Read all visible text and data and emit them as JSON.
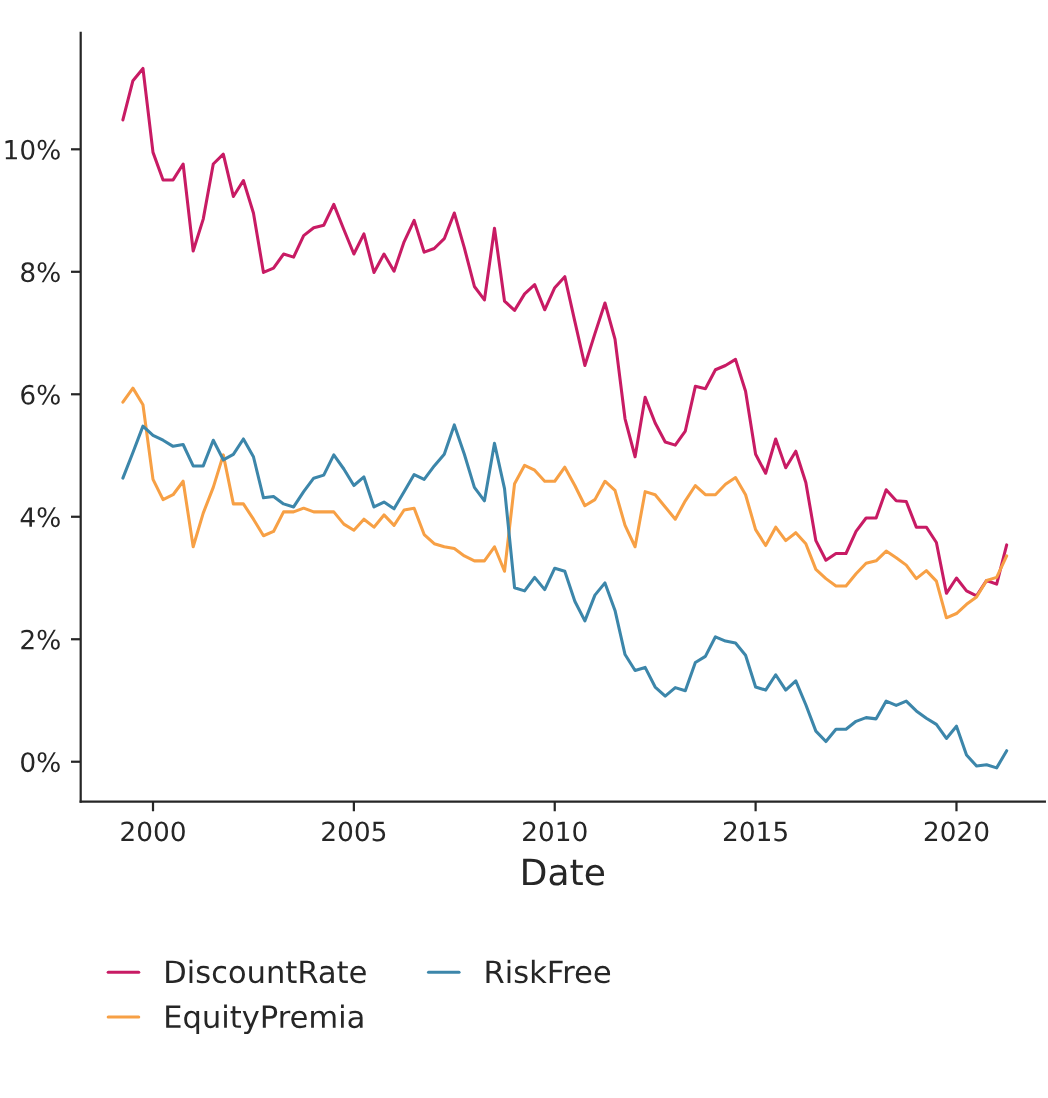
{
  "chart_data": {
    "type": "line",
    "xlabel": "Date",
    "x": [
      1999.25,
      1999.5,
      1999.75,
      2000,
      2000.25,
      2000.5,
      2000.75,
      2001,
      2001.25,
      2001.5,
      2001.75,
      2002,
      2002.25,
      2002.5,
      2002.75,
      2003,
      2003.25,
      2003.5,
      2003.75,
      2004,
      2004.25,
      2004.5,
      2004.75,
      2005,
      2005.25,
      2005.5,
      2005.75,
      2006,
      2006.25,
      2006.5,
      2006.75,
      2007,
      2007.25,
      2007.5,
      2007.75,
      2008,
      2008.25,
      2008.5,
      2008.75,
      2009,
      2009.25,
      2009.5,
      2009.75,
      2010,
      2010.25,
      2010.5,
      2010.75,
      2011,
      2011.25,
      2011.5,
      2011.75,
      2012,
      2012.25,
      2012.5,
      2012.75,
      2013,
      2013.25,
      2013.5,
      2013.75,
      2014,
      2014.25,
      2014.5,
      2014.75,
      2015,
      2015.25,
      2015.5,
      2015.75,
      2016,
      2016.25,
      2016.5,
      2016.75,
      2017,
      2017.25,
      2017.5,
      2017.75,
      2018,
      2018.25,
      2018.5,
      2018.75,
      2019,
      2019.25,
      2019.5,
      2019.75,
      2020,
      2020.25,
      2020.5,
      2020.75,
      2021,
      2021.25
    ],
    "series": [
      {
        "name": "DiscountRate",
        "color": "#c81b64",
        "values": [
          10.48,
          11.12,
          11.32,
          9.95,
          9.5,
          9.5,
          9.76,
          8.34,
          8.86,
          9.76,
          9.92,
          9.23,
          9.49,
          8.96,
          7.99,
          8.06,
          8.29,
          8.24,
          8.59,
          8.72,
          8.76,
          9.1,
          8.69,
          8.29,
          8.62,
          7.99,
          8.29,
          8.01,
          8.49,
          8.84,
          8.32,
          8.38,
          8.54,
          8.96,
          8.39,
          7.76,
          7.54,
          8.71,
          7.52,
          7.37,
          7.64,
          7.79,
          7.38,
          7.74,
          7.92,
          7.19,
          6.47,
          6.99,
          7.49,
          6.9,
          5.6,
          4.98,
          5.95,
          5.53,
          5.22,
          5.17,
          5.4,
          6.13,
          6.09,
          6.4,
          6.47,
          6.57,
          6.05,
          5.02,
          4.71,
          5.27,
          4.8,
          5.07,
          4.56,
          3.61,
          3.29,
          3.4,
          3.4,
          3.76,
          3.98,
          3.98,
          4.44,
          4.26,
          4.25,
          3.83,
          3.83,
          3.58,
          2.75,
          3.0,
          2.79,
          2.71,
          2.96,
          2.9,
          3.54
        ]
      },
      {
        "name": "EquityPremia",
        "color": "#f7a045",
        "values": [
          5.87,
          6.1,
          5.83,
          4.61,
          4.28,
          4.36,
          4.58,
          3.51,
          4.06,
          4.48,
          5.01,
          4.21,
          4.21,
          3.96,
          3.69,
          3.76,
          4.08,
          4.08,
          4.14,
          4.08,
          4.08,
          4.08,
          3.88,
          3.78,
          3.96,
          3.83,
          4.03,
          3.86,
          4.11,
          4.14,
          3.71,
          3.56,
          3.51,
          3.48,
          3.36,
          3.28,
          3.28,
          3.51,
          3.11,
          4.54,
          4.84,
          4.76,
          4.58,
          4.58,
          4.81,
          4.51,
          4.18,
          4.28,
          4.58,
          4.43,
          3.86,
          3.51,
          4.41,
          4.36,
          4.16,
          3.96,
          4.26,
          4.51,
          4.36,
          4.36,
          4.53,
          4.64,
          4.36,
          3.79,
          3.53,
          3.83,
          3.61,
          3.74,
          3.56,
          3.14,
          2.99,
          2.87,
          2.87,
          3.07,
          3.24,
          3.28,
          3.44,
          3.33,
          3.21,
          2.99,
          3.12,
          2.95,
          2.35,
          2.42,
          2.57,
          2.69,
          2.96,
          3.01,
          3.36
        ]
      },
      {
        "name": "RiskFree",
        "color": "#3c86aa",
        "values": [
          4.63,
          5.05,
          5.48,
          5.33,
          5.25,
          5.15,
          5.18,
          4.83,
          4.83,
          5.25,
          4.93,
          5.02,
          5.27,
          4.98,
          4.31,
          4.33,
          4.21,
          4.16,
          4.41,
          4.63,
          4.68,
          5.01,
          4.78,
          4.51,
          4.65,
          4.16,
          4.24,
          4.13,
          4.41,
          4.69,
          4.61,
          4.83,
          5.02,
          5.5,
          5.02,
          4.48,
          4.26,
          5.2,
          4.46,
          2.84,
          2.79,
          3.01,
          2.81,
          3.16,
          3.11,
          2.62,
          2.3,
          2.72,
          2.92,
          2.47,
          1.75,
          1.49,
          1.54,
          1.22,
          1.07,
          1.21,
          1.16,
          1.62,
          1.72,
          2.04,
          1.97,
          1.94,
          1.74,
          1.22,
          1.17,
          1.42,
          1.17,
          1.32,
          0.93,
          0.5,
          0.33,
          0.53,
          0.53,
          0.66,
          0.72,
          0.7,
          0.99,
          0.92,
          0.99,
          0.83,
          0.71,
          0.61,
          0.38,
          0.58,
          0.11,
          -0.07,
          -0.05,
          -0.1,
          0.18
        ]
      }
    ],
    "xlim": [
      1998.2,
      2022.2
    ],
    "xticks": [
      2000,
      2005,
      2010,
      2015,
      2020
    ],
    "ylim": [
      -0.65,
      11.9
    ],
    "yticks": [
      {
        "value": 0,
        "label": "0%"
      },
      {
        "value": 2,
        "label": "2%"
      },
      {
        "value": 4,
        "label": "4%"
      },
      {
        "value": 6,
        "label": "6%"
      },
      {
        "value": 8,
        "label": "8%"
      },
      {
        "value": 10,
        "label": "10%"
      }
    ],
    "grid": false,
    "legend": "bottom",
    "line_style": "solid",
    "marker": "none"
  }
}
